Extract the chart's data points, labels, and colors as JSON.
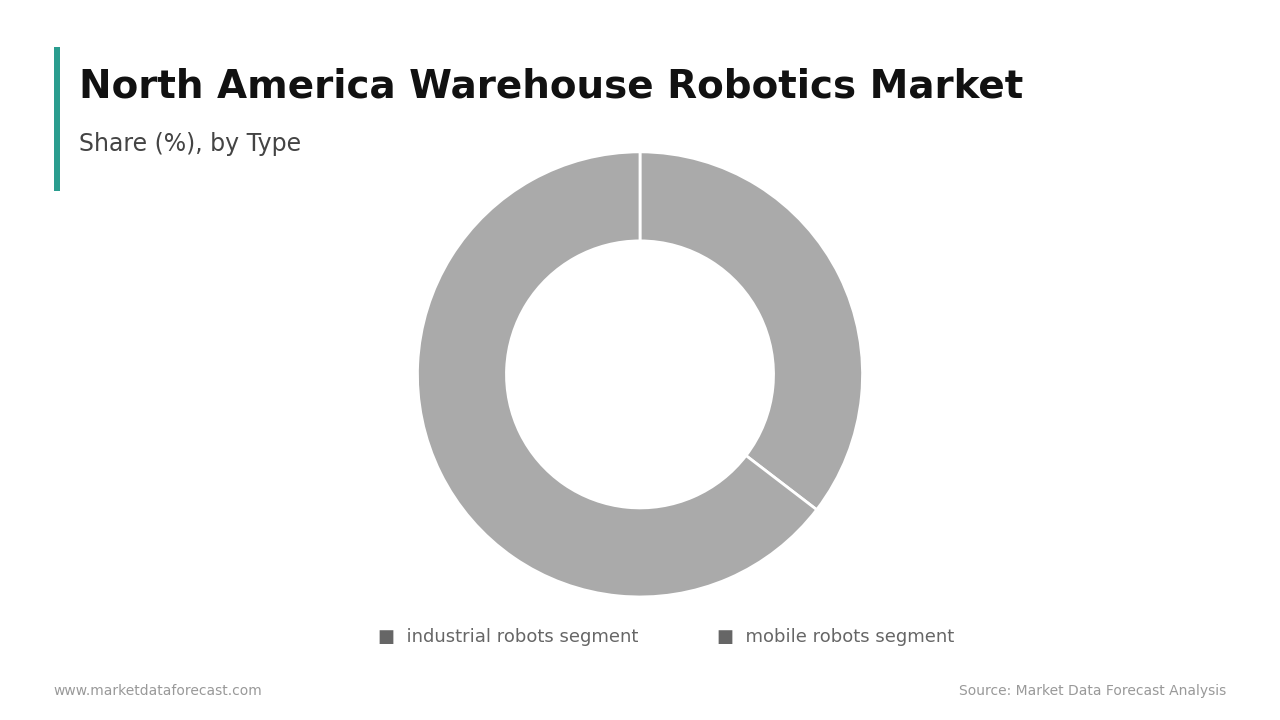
{
  "title": "North America Warehouse Robotics Market",
  "subtitle": "Share (%), by Type",
  "segments": [
    {
      "label": "industrial robots segment",
      "value": 35.4,
      "color": "#aaaaaa"
    },
    {
      "label": "mobile robots segment",
      "value": 64.6,
      "color": "#aaaaaa"
    }
  ],
  "background_color": "#ffffff",
  "title_fontsize": 28,
  "subtitle_fontsize": 17,
  "accent_color": "#2a9d8f",
  "footer_left": "www.marketdataforecast.com",
  "footer_right": "Source: Market Data Forecast Analysis",
  "footer_fontsize": 10,
  "legend_fontsize": 13,
  "title_color": "#111111",
  "subtitle_color": "#444444",
  "legend_color": "#666666",
  "donut_width": 0.4
}
